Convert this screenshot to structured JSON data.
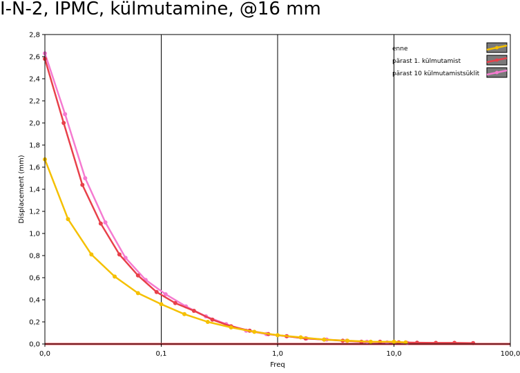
{
  "title": "I-N-2, IPMC, külmutamine, @16 mm",
  "chart_data": {
    "type": "line",
    "xscale": "log",
    "xlabel": "Freq",
    "ylabel": "Displacement (mm)",
    "xlim": [
      0.01,
      100
    ],
    "ylim": [
      0,
      2.8
    ],
    "xticks": [
      {
        "v": 0.01,
        "label": "0,0"
      },
      {
        "v": 0.1,
        "label": "0,1"
      },
      {
        "v": 1,
        "label": "1,0"
      },
      {
        "v": 10,
        "label": "10,0"
      },
      {
        "v": 100,
        "label": "100,0"
      }
    ],
    "yticks": [
      {
        "v": 0.0,
        "label": "0,0"
      },
      {
        "v": 0.2,
        "label": "0,2"
      },
      {
        "v": 0.4,
        "label": "0,4"
      },
      {
        "v": 0.6,
        "label": "0,6"
      },
      {
        "v": 0.8,
        "label": "0,8"
      },
      {
        "v": 1.0,
        "label": "1,0"
      },
      {
        "v": 1.2,
        "label": "1,2"
      },
      {
        "v": 1.4,
        "label": "1,4"
      },
      {
        "v": 1.6,
        "label": "1,6"
      },
      {
        "v": 1.8,
        "label": "1,8"
      },
      {
        "v": 2.0,
        "label": "2,0"
      },
      {
        "v": 2.2,
        "label": "2,2"
      },
      {
        "v": 2.4,
        "label": "2,4"
      },
      {
        "v": 2.6,
        "label": "2,6"
      },
      {
        "v": 2.8,
        "label": "2,8"
      }
    ],
    "grid": "major x only",
    "legend_position": "top-right",
    "baseline": {
      "y": 0.0,
      "color": "#e8404a"
    },
    "series": [
      {
        "name": "enne",
        "color": "#f5c000",
        "x": [
          0.01,
          0.0158,
          0.0251,
          0.0398,
          0.0631,
          0.1,
          0.158,
          0.251,
          0.398,
          0.631,
          1.0,
          1.58,
          2.51,
          3.98,
          6.31,
          10.0,
          12.6
        ],
        "y": [
          1.67,
          1.13,
          0.81,
          0.61,
          0.46,
          0.36,
          0.27,
          0.2,
          0.15,
          0.11,
          0.08,
          0.06,
          0.04,
          0.03,
          0.02,
          0.02,
          0.015
        ]
      },
      {
        "name": "pärast 1. külmutamist",
        "color": "#e8404a",
        "x": [
          0.01,
          0.0145,
          0.021,
          0.0302,
          0.0437,
          0.0631,
          0.0912,
          0.132,
          0.191,
          0.275,
          0.398,
          0.575,
          0.832,
          1.2,
          1.74,
          2.51,
          3.63,
          5.25,
          7.59,
          11.0,
          15.8,
          22.9,
          33.1,
          47.9
        ],
        "y": [
          2.58,
          2.0,
          1.44,
          1.09,
          0.81,
          0.62,
          0.47,
          0.37,
          0.3,
          0.22,
          0.16,
          0.12,
          0.09,
          0.07,
          0.05,
          0.04,
          0.03,
          0.02,
          0.02,
          0.015,
          0.012,
          0.01,
          0.01,
          0.008
        ]
      },
      {
        "name": "pärast 10 külmutamistsüklit",
        "color": "#f57ad0",
        "x": [
          0.01,
          0.0149,
          0.0222,
          0.0331,
          0.0493,
          0.0734,
          0.109,
          0.163,
          0.242,
          0.361,
          0.537,
          0.8,
          1.19,
          1.77,
          2.64,
          3.93,
          5.86,
          8.73,
          13.0
        ],
        "y": [
          2.63,
          2.08,
          1.5,
          1.1,
          0.78,
          0.58,
          0.45,
          0.34,
          0.25,
          0.18,
          0.12,
          0.09,
          0.07,
          0.05,
          0.04,
          0.03,
          0.02,
          0.015,
          0.01
        ]
      }
    ]
  }
}
